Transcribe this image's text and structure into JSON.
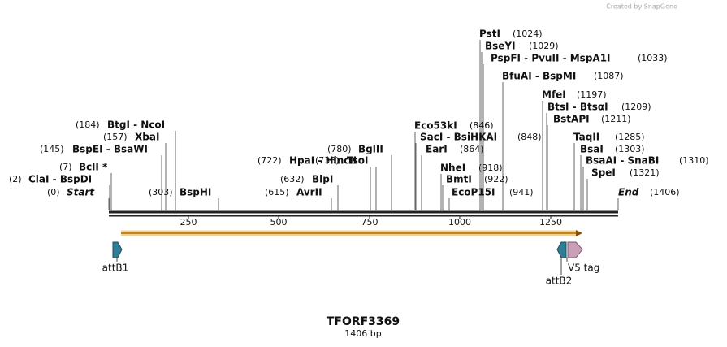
{
  "watermark": "Created by SnapGene",
  "title": "TFORF3369",
  "subtitle": "1406 bp",
  "ticks": [
    "250",
    "500",
    "750",
    "1000",
    "1250"
  ],
  "features": [
    "attB1",
    "attB2",
    "V5 tag"
  ],
  "sites": [
    {
      "name": "PstI",
      "position": "(1024)"
    },
    {
      "name": "BseYI",
      "position": "(1029)"
    },
    {
      "name": "PspFI  -  PvuII  -  MspA1I",
      "position": "(1033)"
    },
    {
      "name": "BfuAI  -  BspMI",
      "position": "(1087)"
    },
    {
      "name": "MfeI",
      "position": "(1197)"
    },
    {
      "name": "BtsI  -  BtsαI",
      "position": "(1209)"
    },
    {
      "name": "BstAPI",
      "position": "(1211)"
    },
    {
      "name": "BtgI  -  NcoI",
      "position": "(184)"
    },
    {
      "name": "Eco53kI",
      "position": "(846)"
    },
    {
      "name": "XbaI",
      "position": "(157)"
    },
    {
      "name": "SacI  -  BsiHKAI",
      "position": "(848)"
    },
    {
      "name": "TaqII",
      "position": "(1285)"
    },
    {
      "name": "BspEI  -  BsaWI",
      "position": "(145)"
    },
    {
      "name": "BglII",
      "position": "(780)"
    },
    {
      "name": "EarI",
      "position": "(864)"
    },
    {
      "name": "BsaI",
      "position": "(1303)"
    },
    {
      "name": "TsoI",
      "position": "(738)"
    },
    {
      "name": "HpaI  -  HincII",
      "position": "(722)"
    },
    {
      "name": "BsaAI  -  SnaBI",
      "position": "(1310)"
    },
    {
      "name": "BclI *",
      "position": "(7)"
    },
    {
      "name": "NheI",
      "position": "(918)"
    },
    {
      "name": "SpeI",
      "position": "(1321)"
    },
    {
      "name": "ClaI  -  BspDI",
      "position": "(2)"
    },
    {
      "name": "BlpI",
      "position": "(632)"
    },
    {
      "name": "BmtI",
      "position": "(922)"
    },
    {
      "name": "Start",
      "position": "(0)"
    },
    {
      "name": "BspHI",
      "position": "(303)"
    },
    {
      "name": "AvrII",
      "position": "(615)"
    },
    {
      "name": "EcoP15I",
      "position": "(941)"
    },
    {
      "name": "End",
      "position": "(1406)"
    }
  ]
}
